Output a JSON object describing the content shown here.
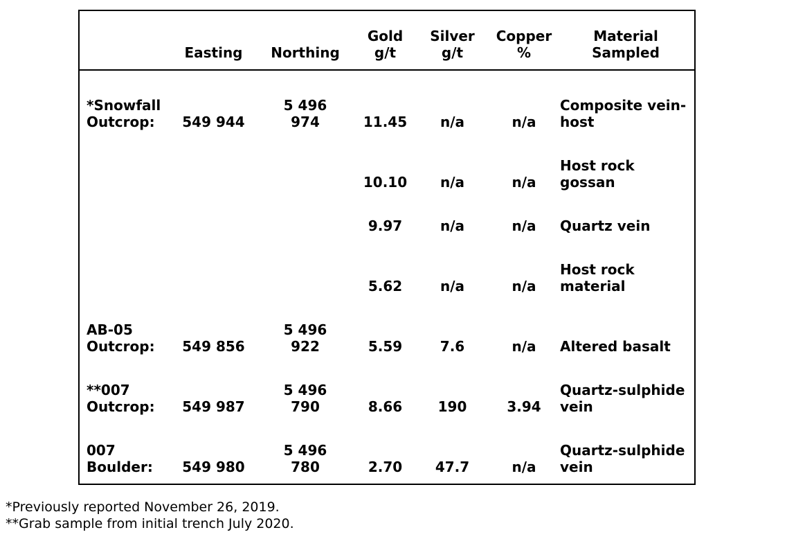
{
  "table": {
    "headers": {
      "name": "",
      "easting": "Easting",
      "northing": "Northing",
      "gold": "Gold\ng/t",
      "silver": "Silver\ng/t",
      "copper": "Copper\n%",
      "material": "Material\nSampled"
    },
    "rows": [
      {
        "name": "*Snowfall\nOutcrop:",
        "easting": "549 944",
        "northing": "5 496\n974",
        "gold": "11.45",
        "silver": "n/a",
        "copper": "n/a",
        "material": "Composite vein-\nhost"
      },
      {
        "name": "",
        "easting": "",
        "northing": "",
        "gold": "10.10",
        "silver": "n/a",
        "copper": "n/a",
        "material": "Host rock\ngossan"
      },
      {
        "name": "",
        "easting": "",
        "northing": "",
        "gold": "9.97",
        "silver": "n/a",
        "copper": "n/a",
        "material": "Quartz vein"
      },
      {
        "name": "",
        "easting": "",
        "northing": "",
        "gold": "5.62",
        "silver": "n/a",
        "copper": "n/a",
        "material": "Host rock\nmaterial"
      },
      {
        "name": "AB-05\nOutcrop:",
        "easting": "549 856",
        "northing": "5 496\n922",
        "gold": "5.59",
        "silver": "7.6",
        "copper": "n/a",
        "material": "Altered basalt"
      },
      {
        "name": "**007\nOutcrop:",
        "easting": "549 987",
        "northing": "5 496\n790",
        "gold": "8.66",
        "silver": "190",
        "copper": "3.94",
        "material": "Quartz-sulphide\nvein"
      },
      {
        "name": "007\nBoulder:",
        "easting": "549 980",
        "northing": "5 496\n780",
        "gold": "2.70",
        "silver": "47.7",
        "copper": "n/a",
        "material": "Quartz-sulphide\nvein"
      }
    ],
    "colors": {
      "border": "#000000",
      "text": "#000000",
      "background": "#ffffff"
    }
  },
  "footnotes": [
    "*Previously reported November 26, 2019.",
    "**Grab sample from initial trench July 2020."
  ]
}
